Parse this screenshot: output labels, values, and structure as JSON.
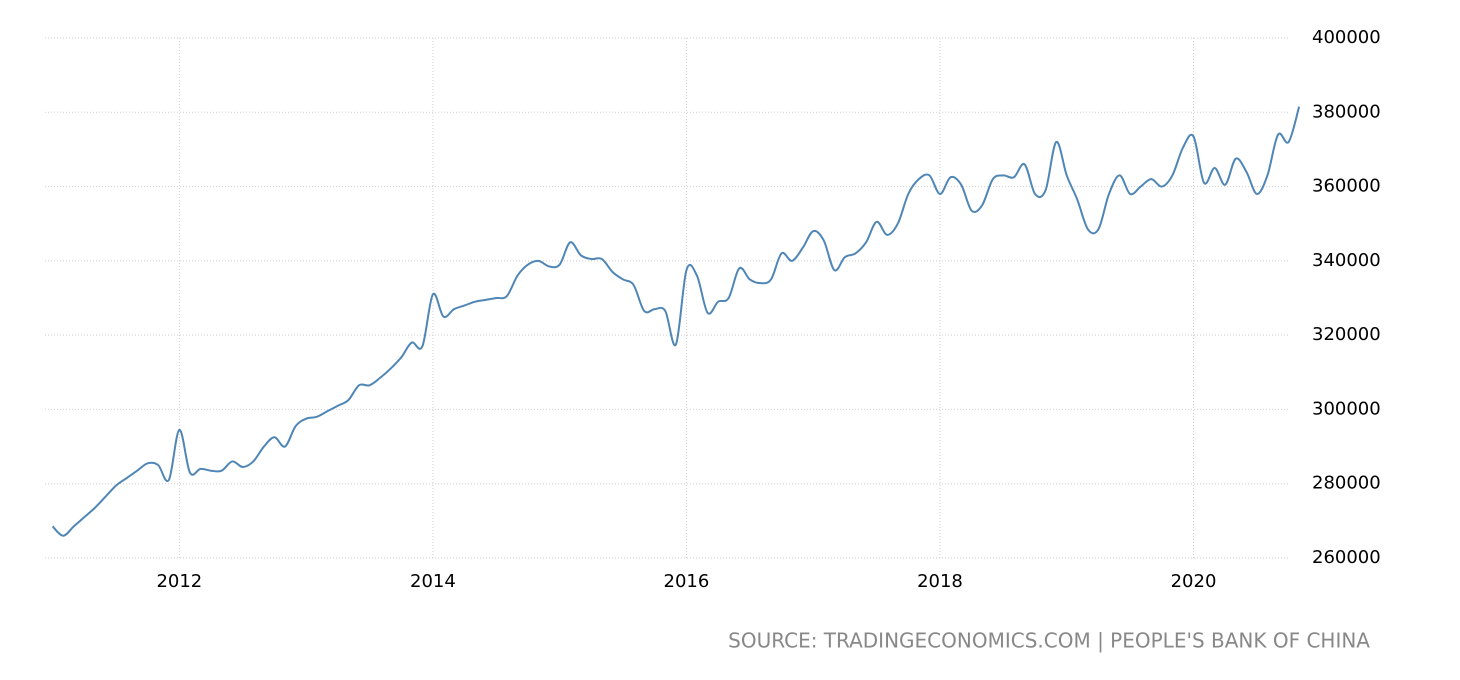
{
  "chart_data": {
    "type": "line",
    "source": "SOURCE: TRADINGECONOMICS.COM | PEOPLE'S BANK OF CHINA",
    "x": [
      2011,
      2011.083,
      2011.167,
      2011.25,
      2011.333,
      2011.417,
      2011.5,
      2011.583,
      2011.667,
      2011.75,
      2011.833,
      2011.917,
      2012,
      2012.083,
      2012.167,
      2012.25,
      2012.333,
      2012.417,
      2012.5,
      2012.583,
      2012.667,
      2012.75,
      2012.833,
      2012.917,
      2013,
      2013.083,
      2013.167,
      2013.25,
      2013.333,
      2013.417,
      2013.5,
      2013.583,
      2013.667,
      2013.75,
      2013.833,
      2013.917,
      2014,
      2014.083,
      2014.167,
      2014.25,
      2014.333,
      2014.417,
      2014.5,
      2014.583,
      2014.667,
      2014.75,
      2014.833,
      2014.917,
      2015,
      2015.083,
      2015.167,
      2015.25,
      2015.333,
      2015.417,
      2015.5,
      2015.583,
      2015.667,
      2015.75,
      2015.833,
      2015.917,
      2016,
      2016.083,
      2016.167,
      2016.25,
      2016.333,
      2016.417,
      2016.5,
      2016.583,
      2016.667,
      2016.75,
      2016.833,
      2016.917,
      2017,
      2017.083,
      2017.167,
      2017.25,
      2017.333,
      2017.417,
      2017.5,
      2017.583,
      2017.667,
      2017.75,
      2017.833,
      2017.917,
      2018,
      2018.083,
      2018.167,
      2018.25,
      2018.333,
      2018.417,
      2018.5,
      2018.583,
      2018.667,
      2018.75,
      2018.833,
      2018.917,
      2019,
      2019.083,
      2019.167,
      2019.25,
      2019.333,
      2019.417,
      2019.5,
      2019.583,
      2019.667,
      2019.75,
      2019.833,
      2019.917,
      2020,
      2020.083,
      2020.167,
      2020.25,
      2020.333,
      2020.417,
      2020.5,
      2020.583,
      2020.667,
      2020.75,
      2020.833
    ],
    "series": [
      {
        "color": "#4f86b5",
        "values": [
          268500,
          266000,
          268500,
          271000,
          273500,
          276500,
          279500,
          281500,
          283500,
          285500,
          285000,
          281000,
          294500,
          283000,
          284000,
          283500,
          283500,
          286000,
          284500,
          286000,
          290000,
          292500,
          290000,
          295500,
          297500,
          298000,
          299500,
          301000,
          302500,
          306500,
          306500,
          308500,
          311000,
          314000,
          318000,
          317000,
          331000,
          325000,
          327000,
          328000,
          329000,
          329500,
          330000,
          330500,
          336000,
          339000,
          340000,
          338500,
          339000,
          345000,
          341500,
          340500,
          340500,
          337000,
          335000,
          333500,
          326500,
          327000,
          326500,
          317500,
          337500,
          336000,
          326000,
          329000,
          330000,
          338000,
          335000,
          334000,
          335000,
          342000,
          340000,
          343500,
          348000,
          345500,
          337500,
          341000,
          342000,
          345000,
          350500,
          347000,
          350000,
          358000,
          362000,
          363000,
          358000,
          362500,
          360500,
          353500,
          355000,
          362000,
          363000,
          362500,
          366000,
          358000,
          359000,
          372000,
          363000,
          356500,
          348500,
          348500,
          358000,
          363000,
          358000,
          360000,
          362000,
          360000,
          363000,
          370500,
          373500,
          361000,
          365000,
          360500,
          367500,
          364000,
          358000,
          363000,
          374000,
          372000,
          381500
        ]
      }
    ],
    "xlim": [
      2010.94,
      2020.84
    ],
    "xticks": [
      2012,
      2014,
      2016,
      2018,
      2020
    ],
    "ylim": [
      260000,
      400000
    ],
    "yticks": [
      260000,
      280000,
      300000,
      320000,
      340000,
      360000,
      380000,
      400000
    ],
    "grid": true
  }
}
